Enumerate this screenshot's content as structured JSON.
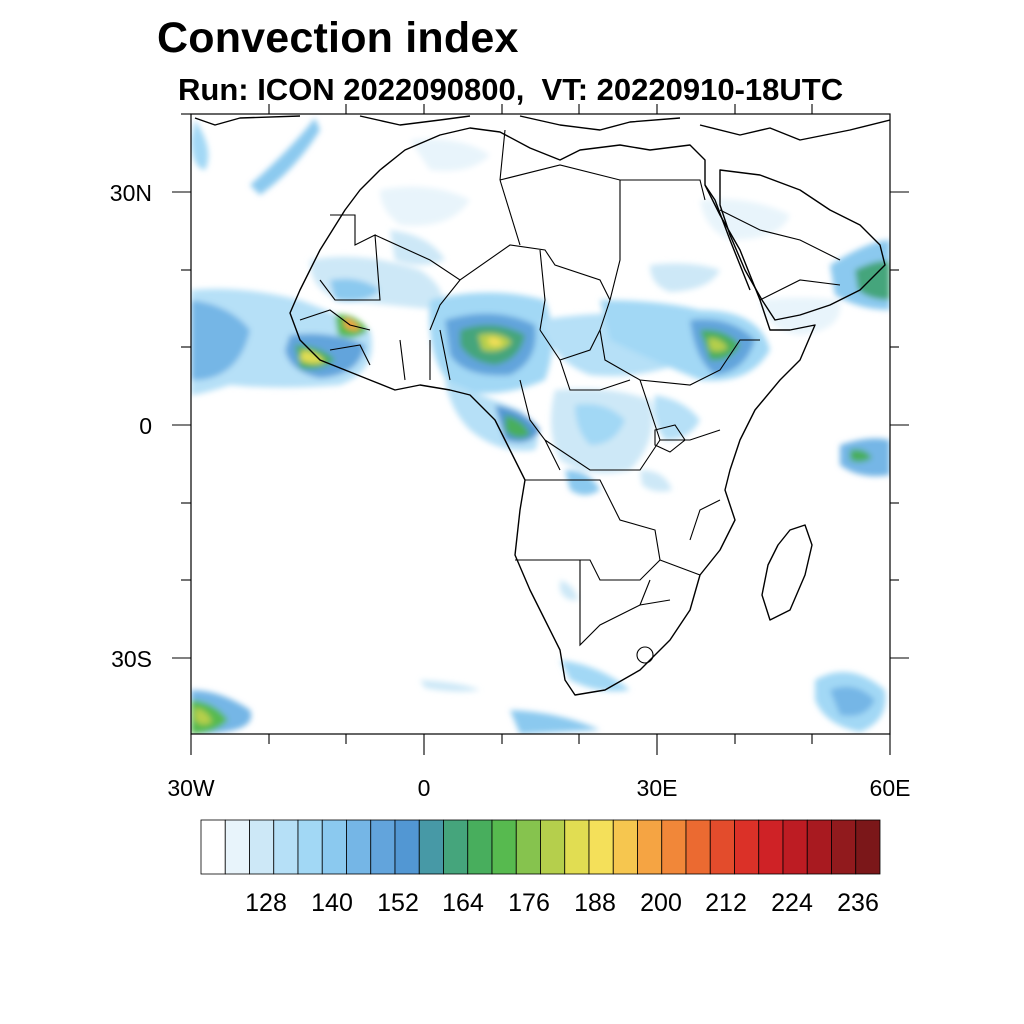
{
  "title": "Convection index",
  "subtitle": "Run: ICON 2022090800,  VT: 20220910-18UTC",
  "axes": {
    "lat_labels": [
      "30N",
      "0",
      "30S"
    ],
    "lon_labels": [
      "30W",
      "0",
      "30E",
      "60E"
    ]
  },
  "colorbar": {
    "labels": [
      "128",
      "140",
      "152",
      "164",
      "176",
      "188",
      "200",
      "212",
      "224",
      "236"
    ],
    "colors": [
      "#ffffff",
      "#e8f4fb",
      "#cde8f7",
      "#b6e0f7",
      "#a2d8f5",
      "#8bc9ef",
      "#75b6e6",
      "#62a4dc",
      "#5297d3",
      "#4799a6",
      "#45a57c",
      "#48ae5d",
      "#57ba4f",
      "#86c34e",
      "#b5cf4c",
      "#e1dd52",
      "#f4e05a",
      "#f6c64f",
      "#f5a443",
      "#f18739",
      "#eb6a31",
      "#e34c2c",
      "#db3128",
      "#cf2226",
      "#bd1c23",
      "#a81a20",
      "#911a1d",
      "#7b1719"
    ]
  }
}
